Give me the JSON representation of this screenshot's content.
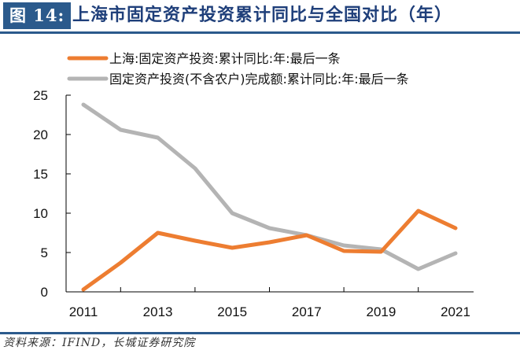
{
  "header": {
    "figure_label": "图 14:",
    "title": "上海市固定资产投资累计同比与全国对比（年）"
  },
  "source": "资料来源：IFIND，长城证券研究院",
  "chart_data": {
    "type": "line",
    "title": "上海市固定资产投资累计同比与全国对比（年）",
    "xlabel": "",
    "ylabel": "",
    "x": [
      2011,
      2012,
      2013,
      2014,
      2015,
      2016,
      2017,
      2018,
      2019,
      2020,
      2021
    ],
    "x_tick_labels": [
      "2011",
      "2013",
      "2015",
      "2017",
      "2019",
      "2021"
    ],
    "y_tick_labels": [
      "0",
      "5",
      "10",
      "15",
      "20",
      "25"
    ],
    "ylim": [
      0,
      25
    ],
    "grid": false,
    "legend_position": "top",
    "series": [
      {
        "name": "上海:固定资产投资:累计同比:年:最后一条",
        "color": "#ed7d31",
        "values": [
          0.3,
          3.7,
          7.5,
          6.5,
          5.6,
          6.3,
          7.2,
          5.2,
          5.1,
          10.3,
          8.1
        ]
      },
      {
        "name": "固定资产投资(不含农户)完成额:累计同比:年:最后一条",
        "color": "#b4b4b4",
        "values": [
          23.8,
          20.6,
          19.6,
          15.7,
          10.0,
          8.1,
          7.2,
          5.9,
          5.4,
          2.9,
          4.9
        ]
      }
    ]
  }
}
